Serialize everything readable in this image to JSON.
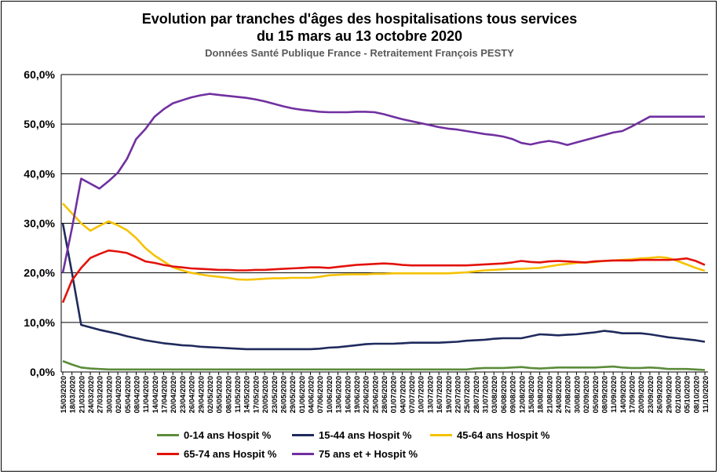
{
  "chart_data": {
    "type": "line",
    "title": "Evolution par tranches d'âges des hospitalisations tous services",
    "subtitle": "du 15 mars au 13 octobre 2020",
    "source": "Données Santé Publique France - Retraitement François PESTY",
    "ylim": [
      0,
      60
    ],
    "yticks": [
      "0,0%",
      "10,0%",
      "20,0%",
      "30,0%",
      "40,0%",
      "50,0%",
      "60,0%"
    ],
    "grid": true,
    "legend_position": "bottom",
    "categories": [
      "15/03/2020",
      "18/03/2020",
      "21/03/2020",
      "24/03/2020",
      "27/03/2020",
      "30/03/2020",
      "02/04/2020",
      "05/04/2020",
      "08/04/2020",
      "11/04/2020",
      "14/04/2020",
      "17/04/2020",
      "20/04/2020",
      "23/04/2020",
      "26/04/2020",
      "29/04/2020",
      "02/05/2020",
      "05/05/2020",
      "08/05/2020",
      "11/05/2020",
      "14/05/2020",
      "17/05/2020",
      "20/05/2020",
      "23/05/2020",
      "26/05/2020",
      "29/05/2020",
      "01/06/2020",
      "04/06/2020",
      "07/06/2020",
      "10/06/2020",
      "13/06/2020",
      "16/06/2020",
      "19/06/2020",
      "22/06/2020",
      "25/06/2020",
      "28/06/2020",
      "01/07/2020",
      "04/07/2020",
      "07/07/2020",
      "10/07/2020",
      "13/07/2020",
      "16/07/2020",
      "19/07/2020",
      "22/07/2020",
      "25/07/2020",
      "28/07/2020",
      "31/07/2020",
      "03/08/2020",
      "06/08/2020",
      "09/08/2020",
      "12/08/2020",
      "15/08/2020",
      "18/08/2020",
      "21/08/2020",
      "24/08/2020",
      "27/08/2020",
      "30/08/2020",
      "02/09/2020",
      "05/09/2020",
      "08/09/2020",
      "11/09/2020",
      "14/09/2020",
      "17/09/2020",
      "20/09/2020",
      "23/09/2020",
      "26/09/2020",
      "29/09/2020",
      "02/10/2020",
      "05/10/2020",
      "08/10/2020",
      "11/10/2020"
    ],
    "series": [
      {
        "name": "0-14 ans Hospit %",
        "color": "#5b8c3a",
        "values": [
          2.2,
          1.5,
          0.9,
          0.7,
          0.6,
          0.5,
          0.5,
          0.5,
          0.5,
          0.5,
          0.5,
          0.5,
          0.5,
          0.5,
          0.5,
          0.5,
          0.5,
          0.5,
          0.5,
          0.5,
          0.5,
          0.5,
          0.5,
          0.5,
          0.5,
          0.5,
          0.5,
          0.5,
          0.5,
          0.5,
          0.5,
          0.5,
          0.5,
          0.5,
          0.5,
          0.5,
          0.5,
          0.5,
          0.5,
          0.5,
          0.5,
          0.5,
          0.5,
          0.5,
          0.5,
          0.7,
          0.8,
          0.8,
          0.8,
          0.9,
          1.0,
          0.8,
          0.7,
          0.8,
          0.9,
          0.9,
          0.9,
          0.9,
          0.9,
          1.0,
          1.1,
          0.9,
          0.8,
          0.8,
          0.9,
          0.8,
          0.6,
          0.6,
          0.6,
          0.5,
          0.4
        ]
      },
      {
        "name": "15-44 ans Hospit %",
        "color": "#1f2a5c",
        "values": [
          30.0,
          20.0,
          9.5,
          9.0,
          8.5,
          8.1,
          7.7,
          7.2,
          6.8,
          6.4,
          6.1,
          5.8,
          5.6,
          5.4,
          5.3,
          5.1,
          5.0,
          4.9,
          4.8,
          4.7,
          4.6,
          4.6,
          4.6,
          4.6,
          4.6,
          4.6,
          4.6,
          4.6,
          4.7,
          4.9,
          5.0,
          5.2,
          5.4,
          5.6,
          5.7,
          5.7,
          5.7,
          5.8,
          5.9,
          5.9,
          5.9,
          5.9,
          6.0,
          6.1,
          6.3,
          6.4,
          6.5,
          6.7,
          6.8,
          6.8,
          6.8,
          7.2,
          7.6,
          7.5,
          7.4,
          7.5,
          7.6,
          7.8,
          8.0,
          8.3,
          8.1,
          7.8,
          7.8,
          7.8,
          7.6,
          7.3,
          7.0,
          6.8,
          6.6,
          6.4,
          6.1
        ]
      },
      {
        "name": "45-64 ans Hospit %",
        "color": "#f5c200",
        "values": [
          34.0,
          32.0,
          30.0,
          28.5,
          29.5,
          30.4,
          29.6,
          28.6,
          27.0,
          25.0,
          23.5,
          22.3,
          21.1,
          20.5,
          20.0,
          19.7,
          19.4,
          19.2,
          19.0,
          18.7,
          18.6,
          18.7,
          18.8,
          18.9,
          18.9,
          19.0,
          19.0,
          19.0,
          19.2,
          19.5,
          19.6,
          19.7,
          19.7,
          19.7,
          19.8,
          19.8,
          19.9,
          19.9,
          19.9,
          19.9,
          19.9,
          19.9,
          19.9,
          20.0,
          20.1,
          20.3,
          20.5,
          20.6,
          20.7,
          20.8,
          20.8,
          20.9,
          21.0,
          21.3,
          21.6,
          21.8,
          22.0,
          22.1,
          22.2,
          22.4,
          22.5,
          22.6,
          22.7,
          22.9,
          23.0,
          23.2,
          23.0,
          22.4,
          21.7,
          21.0,
          20.4
        ]
      },
      {
        "name": "65-74 ans Hospit %",
        "color": "#e3120b",
        "values": [
          14.0,
          18.5,
          21.0,
          23.0,
          23.8,
          24.5,
          24.3,
          24.0,
          23.2,
          22.3,
          22.0,
          21.6,
          21.3,
          21.1,
          20.9,
          20.8,
          20.7,
          20.6,
          20.6,
          20.5,
          20.5,
          20.6,
          20.6,
          20.7,
          20.8,
          20.9,
          21.0,
          21.1,
          21.1,
          21.0,
          21.2,
          21.4,
          21.6,
          21.7,
          21.8,
          21.9,
          21.8,
          21.6,
          21.5,
          21.5,
          21.5,
          21.5,
          21.5,
          21.5,
          21.5,
          21.6,
          21.7,
          21.8,
          21.9,
          22.1,
          22.4,
          22.2,
          22.1,
          22.3,
          22.4,
          22.3,
          22.2,
          22.1,
          22.3,
          22.4,
          22.5,
          22.5,
          22.5,
          22.6,
          22.6,
          22.6,
          22.6,
          22.7,
          22.9,
          22.4,
          21.6
        ]
      },
      {
        "name": "75 ans et + Hospit %",
        "color": "#7030a0",
        "values": [
          20.0,
          29.0,
          39.0,
          38.0,
          37.0,
          38.5,
          40.2,
          43.0,
          47.0,
          49.0,
          51.5,
          53.0,
          54.2,
          54.8,
          55.4,
          55.8,
          56.1,
          55.9,
          55.7,
          55.5,
          55.3,
          55.0,
          54.6,
          54.1,
          53.6,
          53.2,
          52.9,
          52.7,
          52.5,
          52.4,
          52.4,
          52.4,
          52.5,
          52.5,
          52.4,
          52.0,
          51.5,
          51.0,
          50.6,
          50.2,
          49.8,
          49.4,
          49.1,
          48.9,
          48.6,
          48.3,
          48.0,
          47.8,
          47.5,
          47.0,
          46.2,
          45.9,
          46.3,
          46.6,
          46.3,
          45.8,
          46.3,
          46.8,
          47.3,
          47.8,
          48.3,
          48.6,
          49.5,
          50.5,
          51.5,
          51.5,
          51.5,
          51.5,
          51.5,
          51.5,
          51.5
        ]
      }
    ]
  }
}
